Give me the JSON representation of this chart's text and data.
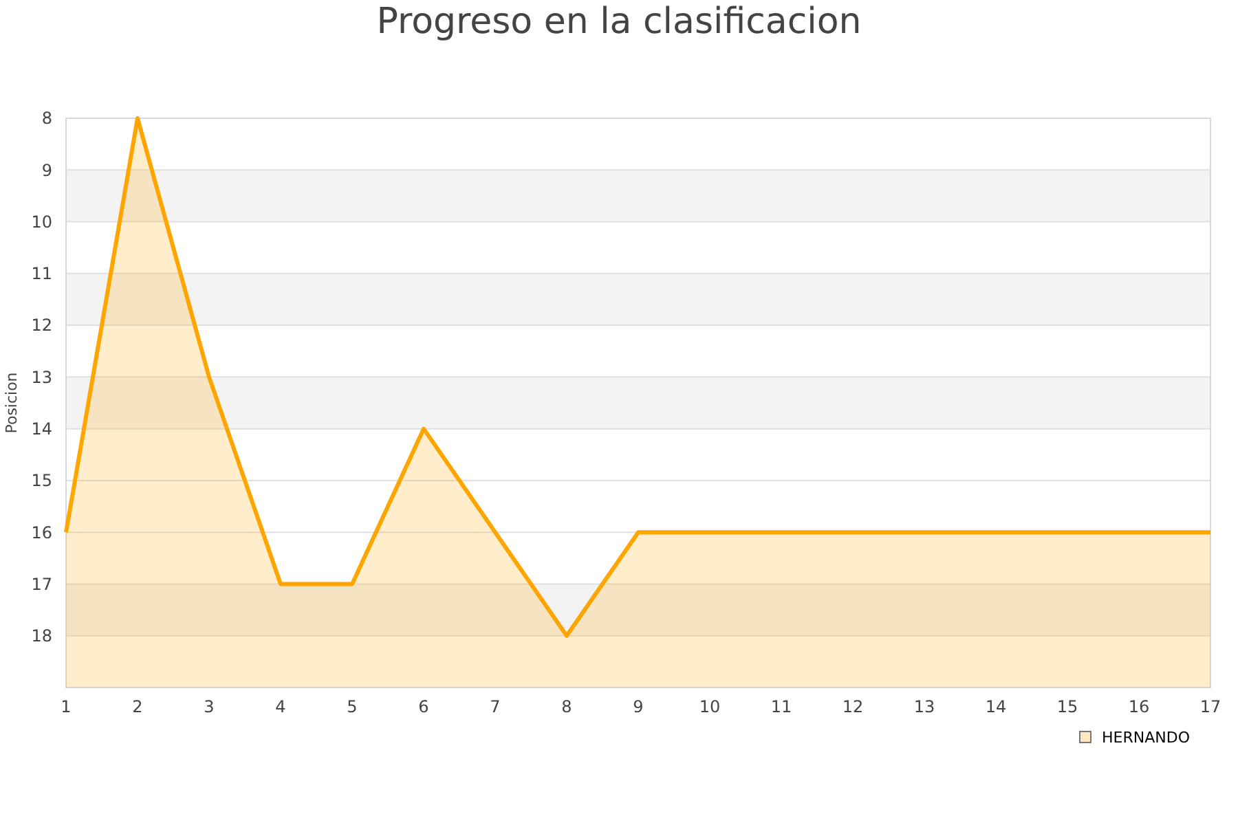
{
  "chart_data": {
    "type": "area",
    "title": "Progreso en la clasificacion",
    "ylabel": "Posicion",
    "x": [
      1,
      2,
      3,
      4,
      5,
      6,
      7,
      8,
      9,
      10,
      11,
      12,
      13,
      14,
      15,
      16,
      17
    ],
    "series": [
      {
        "name": "HERNANDO",
        "color": "#ffa500",
        "values": [
          16,
          8,
          13,
          17,
          17,
          14,
          16,
          18,
          16,
          16,
          16,
          16,
          16,
          16,
          16,
          16,
          16
        ]
      }
    ],
    "xlim": [
      1,
      17
    ],
    "xticks": [
      1,
      2,
      3,
      4,
      5,
      6,
      7,
      8,
      9,
      10,
      11,
      12,
      13,
      14,
      15,
      16,
      17
    ],
    "ylim": [
      19,
      8
    ],
    "yticks": [
      8,
      9,
      10,
      11,
      12,
      13,
      14,
      15,
      16,
      17,
      18,
      {
        "value": 19,
        "label": null
      }
    ],
    "bands": [
      {
        "axis": "y",
        "from": 9,
        "to": 10,
        "color": "#f3f3f3"
      },
      {
        "axis": "y",
        "from": 11,
        "to": 12,
        "color": "#f3f3f3"
      },
      {
        "axis": "y",
        "from": 13,
        "to": 14,
        "color": "#f3f3f3"
      },
      {
        "axis": "y",
        "from": 17,
        "to": 18,
        "color": "#f3f3f3"
      }
    ],
    "grid": "y",
    "legend": "bottom right"
  }
}
